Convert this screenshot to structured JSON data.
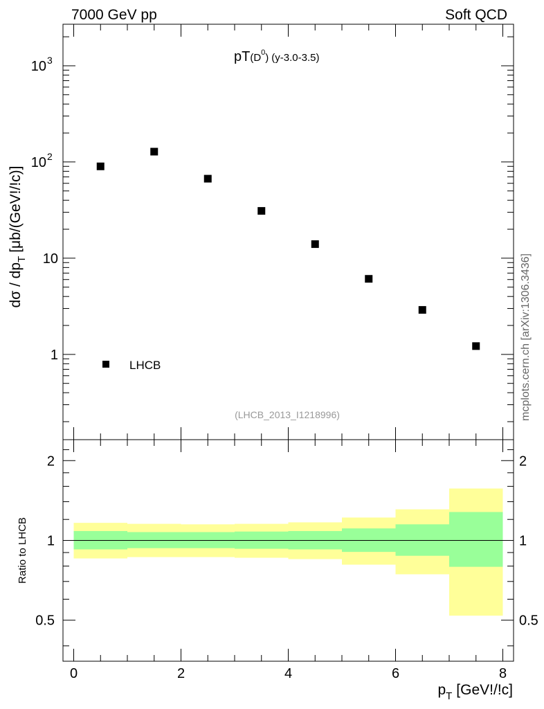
{
  "header": {
    "left": "7000 GeV pp",
    "right": "Soft QCD"
  },
  "side_label": "mcplots.cern.ch [arXiv:1306.3436]",
  "colors": {
    "marker": "#000000",
    "band_inner": "#99ff99",
    "band_outer": "#ffff99",
    "ref_label": "#999999"
  },
  "chart_data": [
    {
      "type": "scatter",
      "title": "pT",
      "title_sub": "(D",
      "title_sup": "0",
      "title_sub_end": ")",
      "title_extra": "(y-3.0-3.5)",
      "ylabel_main": "dσ / dp",
      "ylabel_sub": "T",
      "ylabel_units": "[μb/(GeV!/!c)]",
      "ref_label": "(LHCB_2013_I1218996)",
      "log_y": true,
      "xlim": [
        -0.2,
        8.2
      ],
      "ylim": [
        0.13,
        2700
      ],
      "grid": false,
      "legend_position": "bottom-left",
      "legend_label": "LHCB",
      "y_ticks": [
        {
          "value": 1,
          "label": "1"
        },
        {
          "value": 10,
          "label": "10"
        },
        {
          "value": 100,
          "base": "10",
          "exp": "2"
        },
        {
          "value": 1000,
          "base": "10",
          "exp": "3"
        }
      ],
      "series": [
        {
          "name": "LHCB",
          "x": [
            0.5,
            1.5,
            2.5,
            3.5,
            4.5,
            5.5,
            6.5,
            7.5
          ],
          "y": [
            90,
            128,
            67,
            31,
            14,
            6.1,
            2.9,
            1.22
          ]
        }
      ]
    },
    {
      "type": "area",
      "ylabel": "Ratio to LHCB",
      "xlabel_main": "p",
      "xlabel_sub": "T",
      "xlabel_units": "[GeV!/!c]",
      "ylim": [
        0.35,
        2.4
      ],
      "xlim": [
        -0.2,
        8.2
      ],
      "log_y": true,
      "reference_line": 1,
      "x_ticks": [
        {
          "value": 0,
          "label": "0"
        },
        {
          "value": 2,
          "label": "2"
        },
        {
          "value": 4,
          "label": "4"
        },
        {
          "value": 6,
          "label": "6"
        },
        {
          "value": 8,
          "label": "8"
        }
      ],
      "y_ticks": [
        {
          "value": 0.5,
          "label": "0.5"
        },
        {
          "value": 1,
          "label": "1"
        },
        {
          "value": 2,
          "label": "2"
        }
      ],
      "bins": [
        {
          "x0": 0,
          "x1": 1,
          "outer": [
            0.855,
            1.165
          ],
          "inner": [
            0.925,
            1.085
          ]
        },
        {
          "x0": 1,
          "x1": 2,
          "outer": [
            0.865,
            1.155
          ],
          "inner": [
            0.935,
            1.075
          ]
        },
        {
          "x0": 2,
          "x1": 3,
          "outer": [
            0.865,
            1.15
          ],
          "inner": [
            0.935,
            1.075
          ]
        },
        {
          "x0": 3,
          "x1": 4,
          "outer": [
            0.86,
            1.155
          ],
          "inner": [
            0.93,
            1.08
          ]
        },
        {
          "x0": 4,
          "x1": 5,
          "outer": [
            0.85,
            1.17
          ],
          "inner": [
            0.925,
            1.085
          ]
        },
        {
          "x0": 5,
          "x1": 6,
          "outer": [
            0.81,
            1.22
          ],
          "inner": [
            0.905,
            1.11
          ]
        },
        {
          "x0": 6,
          "x1": 7,
          "outer": [
            0.745,
            1.31
          ],
          "inner": [
            0.875,
            1.15
          ]
        },
        {
          "x0": 7,
          "x1": 8,
          "outer": [
            0.52,
            1.57
          ],
          "inner": [
            0.795,
            1.28
          ]
        }
      ]
    }
  ]
}
